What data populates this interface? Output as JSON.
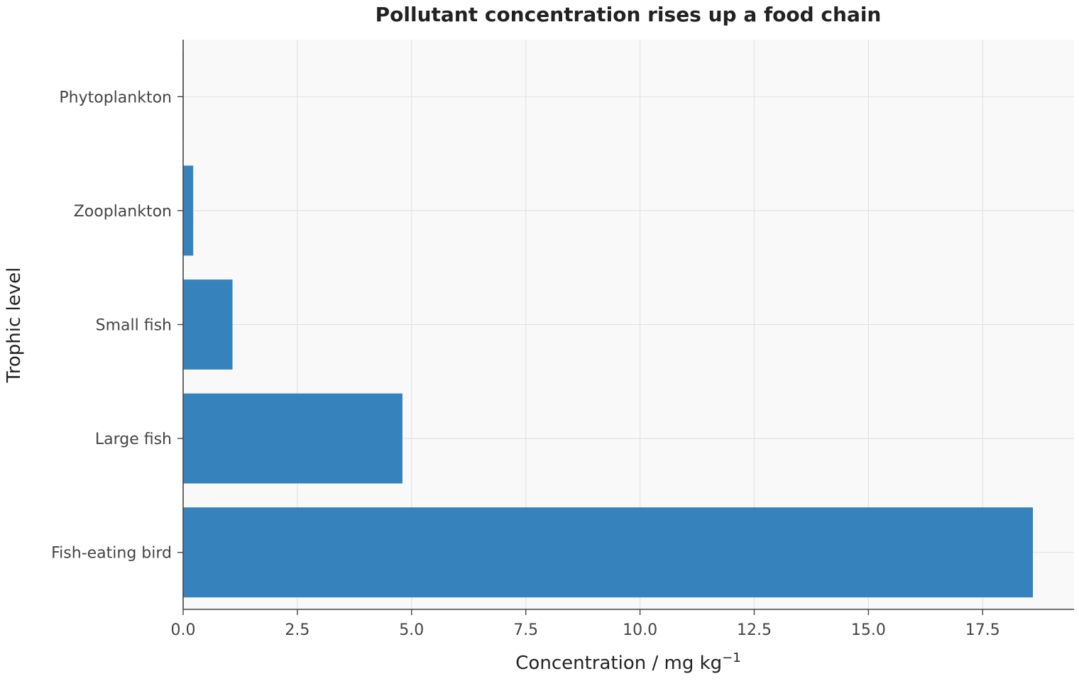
{
  "chart_data": {
    "type": "bar",
    "orientation": "horizontal",
    "title": "Pollutant concentration rises up a food chain",
    "xlabel": "Concentration / mg kg",
    "xlabel_superscript": "−1",
    "ylabel": "Trophic level",
    "categories": [
      "Phytoplankton",
      "Zooplankton",
      "Small fish",
      "Large fish",
      "Fish-eating bird"
    ],
    "values": [
      0.01,
      0.22,
      1.08,
      4.8,
      18.6
    ],
    "xlim": [
      0,
      19.5
    ],
    "xticks": [
      0,
      2.5,
      5,
      7.5,
      10,
      12.5,
      15,
      17.5
    ],
    "xtick_labels": [
      "0.0",
      "2.5",
      "5.0",
      "7.5",
      "10.0",
      "12.5",
      "15.0",
      "17.5"
    ],
    "grid": true,
    "colors": {
      "bar": "#2b7bb9",
      "plot_background": "#f9f9fa",
      "grid": "#e3e3e3"
    }
  }
}
